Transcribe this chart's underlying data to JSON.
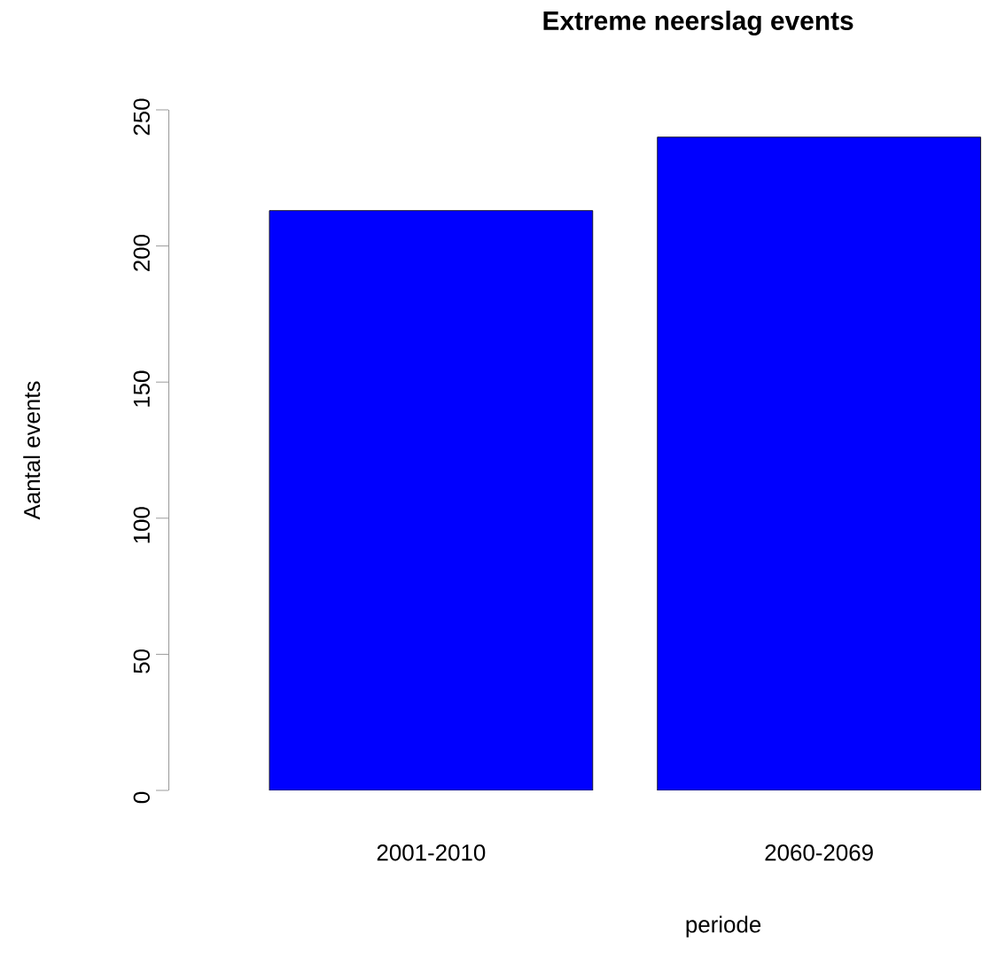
{
  "chart_data": {
    "type": "bar",
    "title": "Extreme neerslag events",
    "xlabel": "periode",
    "ylabel": "Aantal events",
    "categories": [
      "2001-2010",
      "2060-2069"
    ],
    "values": [
      213,
      240
    ],
    "color": "#0000ff",
    "ylim": [
      0,
      250
    ],
    "yticks": [
      0,
      50,
      100,
      150,
      200,
      250
    ]
  }
}
